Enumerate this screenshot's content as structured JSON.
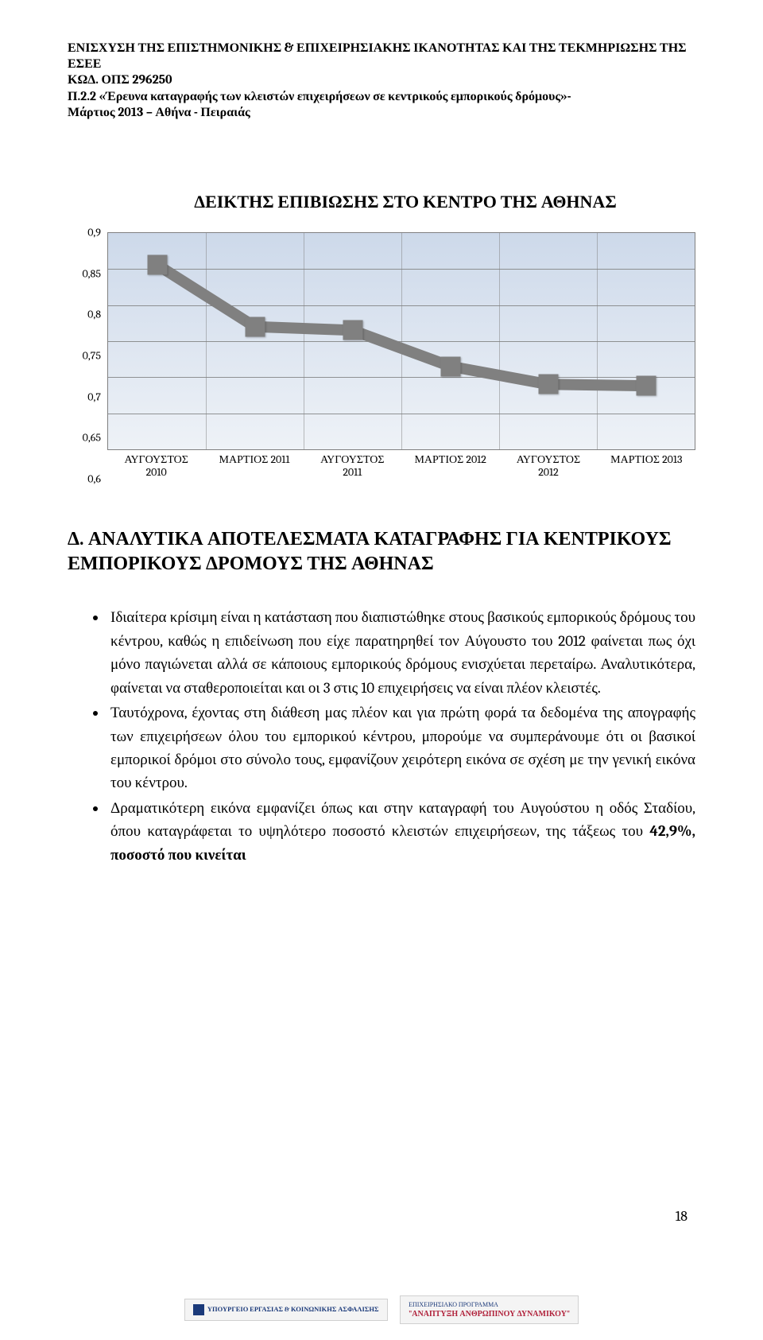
{
  "header": {
    "line1": "ΕΝΙΣΧΥΣΗ ΤΗΣ ΕΠΙΣΤΗΜΟΝΙΚΗΣ & ΕΠΙΧΕΙΡΗΣΙΑΚΗΣ ΙΚΑΝΟΤΗΤΑΣ ΚΑΙ ΤΗΣ ΤΕΚΜΗΡΙΩΣΗΣ ΤΗΣ ΕΣΕΕ",
    "line2": "ΚΩΔ. ΟΠΣ 296250",
    "line3": "Π.2.2 «Έρευνα καταγραφής των κλειστών επιχειρήσεων σε κεντρικούς εμπορικούς δρόμους»-",
    "line4": "Μάρτιος 2013 – Αθήνα - Πειραιάς"
  },
  "chart": {
    "title": "ΔΕΙΚΤΗΣ ΕΠΙΒΙΩΣΗΣ ΣΤΟ ΚΕΝΤΡΟ ΤΗΣ ΑΘΗΝΑΣ",
    "type": "line",
    "ylim": [
      0.6,
      0.9
    ],
    "ytick_step": 0.05,
    "yticks": [
      "0,9",
      "0,85",
      "0,8",
      "0,75",
      "0,7",
      "0,65",
      "0,6"
    ],
    "x_labels": [
      [
        "ΑΥΓΟΥΣΤΟΣ",
        "2010"
      ],
      [
        "ΜΑΡΤΙΟΣ 2011"
      ],
      [
        "ΑΥΓΟΥΣΤΟΣ",
        "2011"
      ],
      [
        "ΜΑΡΤΙΟΣ 2012"
      ],
      [
        "ΑΥΓΟΥΣΤΟΣ",
        "2012"
      ],
      [
        "ΜΑΡΤΙΟΣ 2013"
      ]
    ],
    "values": [
      0.856,
      0.77,
      0.765,
      0.715,
      0.69,
      0.688
    ],
    "line_color": "#808080",
    "marker_color": "#808080",
    "grid_color": "#808080",
    "bg_gradient_top": "#cdd9ea",
    "bg_gradient_bottom": "#eef2f7",
    "line_width": 14,
    "marker_size": 25
  },
  "section_title": "Δ. ΑΝΑΛΥΤΙΚΑ ΑΠΟΤΕΛΕΣΜΑΤΑ ΚΑΤΑΓΡΑΦΗΣ ΓΙΑ ΚΕΝΤΡΙΚΟΥΣ ΕΜΠΟΡΙΚΟΥΣ ΔΡΟΜΟΥΣ ΤΗΣ ΑΘΗΝΑΣ",
  "bullets": {
    "b1": "Ιδιαίτερα κρίσιμη είναι η κατάσταση που διαπιστώθηκε στους βασικούς εμπορικούς δρόμους του κέντρου, καθώς η επιδείνωση που είχε παρατηρηθεί τον Αύγουστο του 2012 φαίνεται πως όχι μόνο παγιώνεται αλλά σε κάποιους εμπορικούς δρόμους ενισχύεται περεταίρω. Αναλυτικότερα, φαίνεται να σταθεροποιείται και οι 3 στις 10 επιχειρήσεις να είναι πλέον κλειστές.",
    "b2": "Ταυτόχρονα, έχοντας στη διάθεση μας πλέον και  για πρώτη φορά τα δεδομένα της απογραφής των επιχειρήσεων όλου του εμπορικού κέντρου, μπορούμε να συμπεράνουμε ότι οι βασικοί εμπορικοί δρόμοι στο σύνολο τους, εμφανίζουν χειρότερη εικόνα σε σχέση με την γενική εικόνα του κέντρου.",
    "b3_pre": "Δραματικότερη εικόνα εμφανίζει όπως και στην καταγραφή του Αυγούστου η οδός Σταδίου, όπου καταγράφεται το υψηλότερο ποσοστό κλειστών επιχειρήσεων, της τάξεως του  ",
    "b3_bold": "42,9%, ποσοστό που κινείται"
  },
  "page_number": "18",
  "footer": {
    "badge1_title": "ΥΠΟΥΡΓΕΙΟ ΕΡΓΑΣΙΑΣ & ΚΟΙΝΩΝΙΚΗΣ ΑΣΦΑΛΙΣΗΣ",
    "badge2_line1": "ΕΠΙΧΕΙΡΗΣΙΑΚΟ ΠΡΟΓΡΑΜΜΑ",
    "badge2_line2": "\"ΑΝΑΠΤΥΞΗ ΑΝΘΡΩΠΙΝΟΥ ΔΥΝΑΜΙΚΟΥ\""
  }
}
